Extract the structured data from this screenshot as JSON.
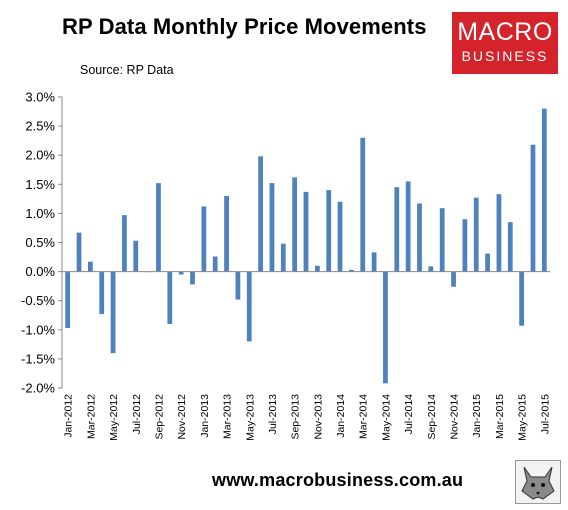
{
  "header": {
    "title": "RP Data Monthly Price Movements",
    "source": "Source: RP Data"
  },
  "logo": {
    "line1": "MACRO",
    "line2": "BUSINESS",
    "color": "#d4232a"
  },
  "footer": {
    "url": "www.macrobusiness.com.au"
  },
  "chart_data": {
    "type": "bar",
    "bar_color": "#4f81bd",
    "ylim": [
      -2.0,
      3.0
    ],
    "ytick_step": 0.5,
    "ytick_labels": [
      "3.0%",
      "2.5%",
      "2.0%",
      "1.5%",
      "1.0%",
      "0.5%",
      "0.0%",
      "-0.5%",
      "-1.0%",
      "-1.5%",
      "-2.0%"
    ],
    "xtick_labels": [
      "Jan-2012",
      "Mar-2012",
      "May-2012",
      "Jul-2012",
      "Sep-2012",
      "Nov-2012",
      "Jan-2013",
      "Mar-2013",
      "May-2013",
      "Jul-2013",
      "Sep-2013",
      "Nov-2013",
      "Jan-2014",
      "Mar-2014",
      "May-2014",
      "Jul-2014",
      "Sep-2014",
      "Nov-2014",
      "Jan-2015",
      "Mar-2015",
      "May-2015",
      "Jul-2015"
    ],
    "grid": false,
    "categories": [
      "Jan-2012",
      "Feb-2012",
      "Mar-2012",
      "Apr-2012",
      "May-2012",
      "Jun-2012",
      "Jul-2012",
      "Aug-2012",
      "Sep-2012",
      "Oct-2012",
      "Nov-2012",
      "Dec-2012",
      "Jan-2013",
      "Feb-2013",
      "Mar-2013",
      "Apr-2013",
      "May-2013",
      "Jun-2013",
      "Jul-2013",
      "Aug-2013",
      "Sep-2013",
      "Oct-2013",
      "Nov-2013",
      "Dec-2013",
      "Jan-2014",
      "Feb-2014",
      "Mar-2014",
      "Apr-2014",
      "May-2014",
      "Jun-2014",
      "Jul-2014",
      "Aug-2014",
      "Sep-2014",
      "Oct-2014",
      "Nov-2014",
      "Dec-2014",
      "Jan-2015",
      "Feb-2015",
      "Mar-2015",
      "Apr-2015",
      "May-2015",
      "Jun-2015",
      "Jul-2015"
    ],
    "values": [
      -0.97,
      0.67,
      0.17,
      -0.73,
      -1.4,
      0.97,
      0.53,
      0.0,
      1.52,
      -0.9,
      -0.05,
      -0.22,
      1.12,
      0.26,
      1.3,
      -0.48,
      -1.2,
      1.98,
      1.52,
      0.48,
      1.62,
      1.37,
      0.1,
      1.4,
      1.2,
      0.03,
      2.3,
      0.33,
      -1.92,
      1.45,
      1.55,
      1.17,
      0.09,
      1.09,
      -0.26,
      0.9,
      1.27,
      0.31,
      1.33,
      0.85,
      -0.93,
      2.18,
      2.8
    ]
  }
}
